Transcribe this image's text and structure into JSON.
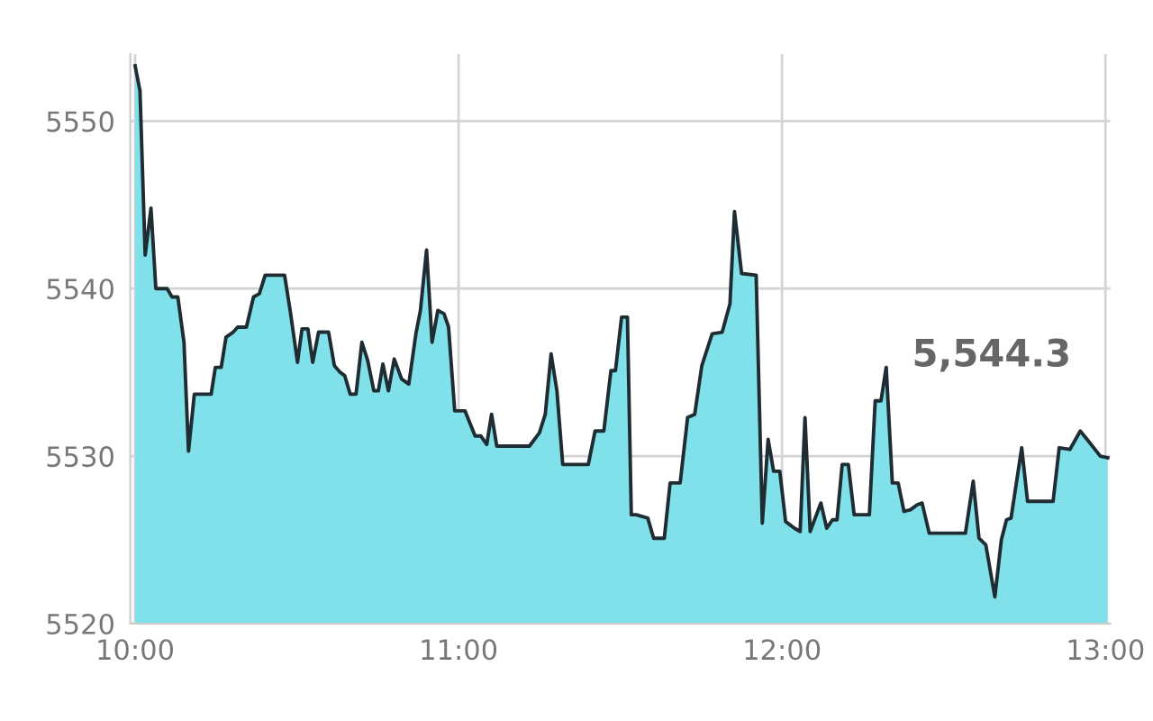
{
  "chart_data": {
    "type": "area",
    "annotations": [
      "5,544.3"
    ],
    "xlim": [
      9.985,
      13.015
    ],
    "xticks": [
      {
        "value": 10,
        "label": "10:00"
      },
      {
        "value": 11,
        "label": "11:00"
      },
      {
        "value": 12,
        "label": "12:00"
      },
      {
        "value": 13,
        "label": "13:00"
      }
    ],
    "ylim": [
      5520,
      5554
    ],
    "yticks": [
      5520,
      5530,
      5540,
      5550
    ],
    "grid": true,
    "series": [
      {
        "color": "#80e1eb",
        "x": [
          10.0,
          10.015,
          10.031,
          10.049,
          10.064,
          10.099,
          10.114,
          10.132,
          10.151,
          10.165,
          10.183,
          10.235,
          10.248,
          10.266,
          10.281,
          10.303,
          10.317,
          10.344,
          10.366,
          10.384,
          10.402,
          10.462,
          10.48,
          10.502,
          10.516,
          10.534,
          10.549,
          10.567,
          10.598,
          10.616,
          10.634,
          10.648,
          10.665,
          10.683,
          10.701,
          10.719,
          10.738,
          10.752,
          10.766,
          10.783,
          10.801,
          10.824,
          10.846,
          10.868,
          10.882,
          10.901,
          10.918,
          10.936,
          10.955,
          10.969,
          10.988,
          11.02,
          11.051,
          11.069,
          11.087,
          11.102,
          11.118,
          11.219,
          11.25,
          11.268,
          11.286,
          11.304,
          11.322,
          11.401,
          11.422,
          11.449,
          11.471,
          11.485,
          11.504,
          11.522,
          11.534,
          11.549,
          11.585,
          11.603,
          11.636,
          11.654,
          11.685,
          11.708,
          11.73,
          11.752,
          11.784,
          11.815,
          11.839,
          11.853,
          11.875,
          11.92,
          11.939,
          11.957,
          11.974,
          11.993,
          12.011,
          12.038,
          12.056,
          12.071,
          12.087,
          12.12,
          12.138,
          12.156,
          12.17,
          12.186,
          12.205,
          12.223,
          12.27,
          12.288,
          12.306,
          12.322,
          12.341,
          12.359,
          12.377,
          12.397,
          12.418,
          12.433,
          12.455,
          12.567,
          12.591,
          12.609,
          12.63,
          12.658,
          12.678,
          12.694,
          12.708,
          12.741,
          12.759,
          12.838,
          12.857,
          12.89,
          12.922,
          12.943,
          12.984,
          13.007
        ],
        "values": [
          5553.3,
          5551.8,
          5542.0,
          5544.8,
          5540.0,
          5540.0,
          5539.5,
          5539.5,
          5536.8,
          5530.3,
          5533.7,
          5533.7,
          5535.3,
          5535.3,
          5537.1,
          5537.4,
          5537.7,
          5537.7,
          5539.5,
          5539.7,
          5540.8,
          5540.8,
          5538.6,
          5535.6,
          5537.6,
          5537.6,
          5535.6,
          5537.4,
          5537.4,
          5535.4,
          5535.0,
          5534.8,
          5533.7,
          5533.7,
          5536.8,
          5535.7,
          5533.9,
          5533.9,
          5535.5,
          5533.9,
          5535.8,
          5534.6,
          5534.3,
          5537.3,
          5538.7,
          5542.3,
          5536.8,
          5538.7,
          5538.5,
          5537.7,
          5532.7,
          5532.7,
          5531.2,
          5531.2,
          5530.7,
          5532.5,
          5530.6,
          5530.6,
          5531.4,
          5532.5,
          5536.1,
          5533.9,
          5529.5,
          5529.5,
          5531.5,
          5531.5,
          5535.1,
          5535.1,
          5538.3,
          5538.3,
          5526.5,
          5526.5,
          5526.3,
          5525.1,
          5525.1,
          5528.4,
          5528.4,
          5532.3,
          5532.5,
          5535.4,
          5537.3,
          5537.4,
          5539.1,
          5544.6,
          5540.9,
          5540.8,
          5526.0,
          5531.0,
          5529.1,
          5529.1,
          5526.1,
          5525.7,
          5525.5,
          5532.3,
          5525.5,
          5527.2,
          5525.7,
          5526.2,
          5526.2,
          5529.5,
          5529.5,
          5526.5,
          5526.5,
          5533.3,
          5533.3,
          5535.3,
          5528.4,
          5528.4,
          5526.7,
          5526.8,
          5527.1,
          5527.2,
          5525.4,
          5525.4,
          5528.5,
          5525.1,
          5524.7,
          5521.6,
          5525.0,
          5526.2,
          5526.3,
          5530.5,
          5527.3,
          5527.3,
          5530.5,
          5530.4,
          5531.5,
          5531.0,
          5530.0,
          5529.9
        ]
      }
    ]
  }
}
